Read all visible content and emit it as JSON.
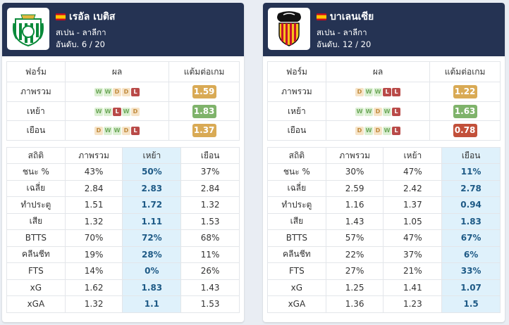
{
  "home": {
    "team_name": "เรอัล เบติส",
    "league": "สเปน - ลาลีกา",
    "rank": "อันดับ. 6 / 20",
    "highlight_col": 2,
    "form_header": [
      "ฟอร์ม",
      "ผล",
      "แต้มต่อเกม"
    ],
    "form_rows": [
      {
        "label": "ภาพรวม",
        "results": [
          "W",
          "W",
          "D",
          "D",
          "L"
        ],
        "ppg": "1.59",
        "ppg_level": "mid"
      },
      {
        "label": "เหย้า",
        "results": [
          "W",
          "W",
          "L",
          "W",
          "D"
        ],
        "ppg": "1.83",
        "ppg_level": "good"
      },
      {
        "label": "เยือน",
        "results": [
          "D",
          "W",
          "W",
          "D",
          "L"
        ],
        "ppg": "1.37",
        "ppg_level": "mid"
      }
    ],
    "stats_header": [
      "สถิติ",
      "ภาพรวม",
      "เหย้า",
      "เยือน"
    ],
    "stats_rows": [
      [
        "ชนะ %",
        "43%",
        "50%",
        "37%"
      ],
      [
        "เฉลี่ย",
        "2.84",
        "2.83",
        "2.84"
      ],
      [
        "ทำประตู",
        "1.51",
        "1.72",
        "1.32"
      ],
      [
        "เสีย",
        "1.32",
        "1.11",
        "1.53"
      ],
      [
        "BTTS",
        "70%",
        "72%",
        "68%"
      ],
      [
        "คลีนชีท",
        "19%",
        "28%",
        "11%"
      ],
      [
        "FTS",
        "14%",
        "0%",
        "26%"
      ],
      [
        "xG",
        "1.62",
        "1.83",
        "1.43"
      ],
      [
        "xGA",
        "1.32",
        "1.1",
        "1.53"
      ]
    ]
  },
  "away": {
    "team_name": "บาเลนเซีย",
    "league": "สเปน - ลาลีกา",
    "rank": "อันดับ. 12 / 20",
    "highlight_col": 3,
    "form_header": [
      "ฟอร์ม",
      "ผล",
      "แต้มต่อเกม"
    ],
    "form_rows": [
      {
        "label": "ภาพรวม",
        "results": [
          "D",
          "W",
          "W",
          "L",
          "L"
        ],
        "ppg": "1.22",
        "ppg_level": "mid"
      },
      {
        "label": "เหย้า",
        "results": [
          "W",
          "W",
          "D",
          "W",
          "L"
        ],
        "ppg": "1.63",
        "ppg_level": "good"
      },
      {
        "label": "เยือน",
        "results": [
          "D",
          "W",
          "D",
          "W",
          "L"
        ],
        "ppg": "0.78",
        "ppg_level": "bad"
      }
    ],
    "stats_header": [
      "สถิติ",
      "ภาพรวม",
      "เหย้า",
      "เยือน"
    ],
    "stats_rows": [
      [
        "ชนะ %",
        "30%",
        "47%",
        "11%"
      ],
      [
        "เฉลี่ย",
        "2.59",
        "2.42",
        "2.78"
      ],
      [
        "ทำประตู",
        "1.16",
        "1.37",
        "0.94"
      ],
      [
        "เสีย",
        "1.43",
        "1.05",
        "1.83"
      ],
      [
        "BTTS",
        "57%",
        "47%",
        "67%"
      ],
      [
        "คลีนชีท",
        "22%",
        "37%",
        "6%"
      ],
      [
        "FTS",
        "27%",
        "21%",
        "33%"
      ],
      [
        "xG",
        "1.25",
        "1.41",
        "1.07"
      ],
      [
        "xGA",
        "1.36",
        "1.23",
        "1.5"
      ]
    ]
  },
  "colors": {
    "header_bg": "#253353",
    "highlight_bg": "#dff1fb",
    "highlight_text": "#1e5a86",
    "win": "#dcefd3",
    "draw": "#f6e3c7",
    "loss": "#b94a48",
    "ppg_good": "#7fb36b",
    "ppg_mid": "#d9aa55",
    "ppg_bad": "#c2503a"
  }
}
